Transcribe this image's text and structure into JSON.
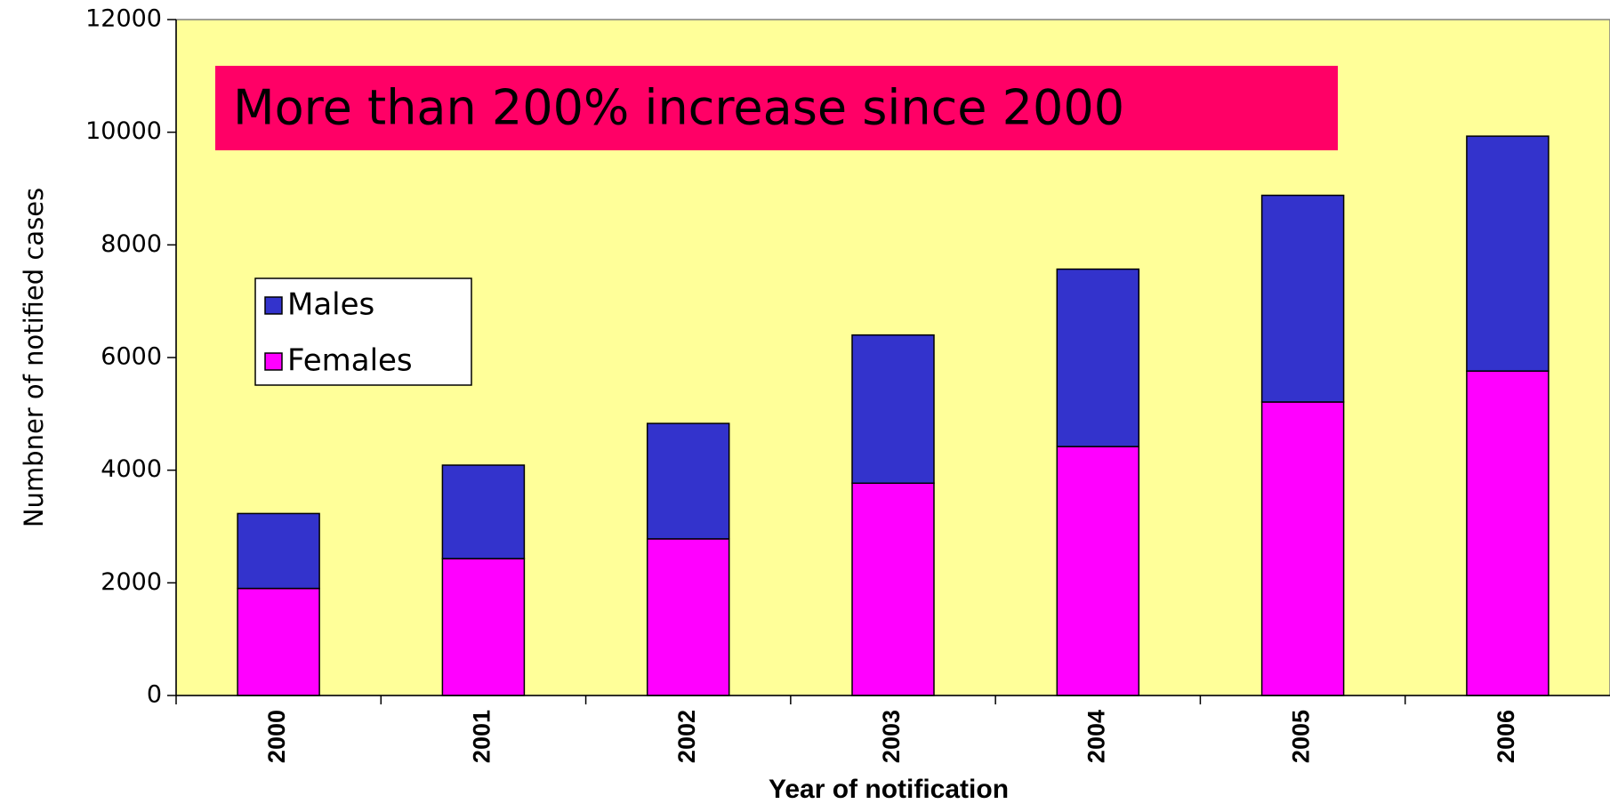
{
  "chart_data": {
    "type": "bar",
    "stacked": true,
    "categories": [
      "2000",
      "2001",
      "2002",
      "2003",
      "2004",
      "2005",
      "2006"
    ],
    "series": [
      {
        "name": "Females",
        "color": "#FF00FF",
        "values": [
          1900,
          2430,
          2780,
          3770,
          4420,
          5210,
          5760
        ]
      },
      {
        "name": "Males",
        "color": "#3333CC",
        "values": [
          1330,
          1660,
          2050,
          2630,
          3150,
          3670,
          4170
        ]
      }
    ],
    "xlabel": "Year of notification",
    "ylabel": "Numbner of notified cases",
    "ylim": [
      0,
      12000
    ],
    "yticks": [
      "0",
      "2000",
      "4000",
      "6000",
      "8000",
      "10000",
      "12000"
    ],
    "plot_background": "#FFFF99",
    "grid": false,
    "legend": {
      "placement": "upper-left",
      "entries": [
        "Males",
        "Females"
      ]
    },
    "annotation": {
      "text": "More than 200% increase since 2000",
      "background": "#FF0066"
    }
  }
}
